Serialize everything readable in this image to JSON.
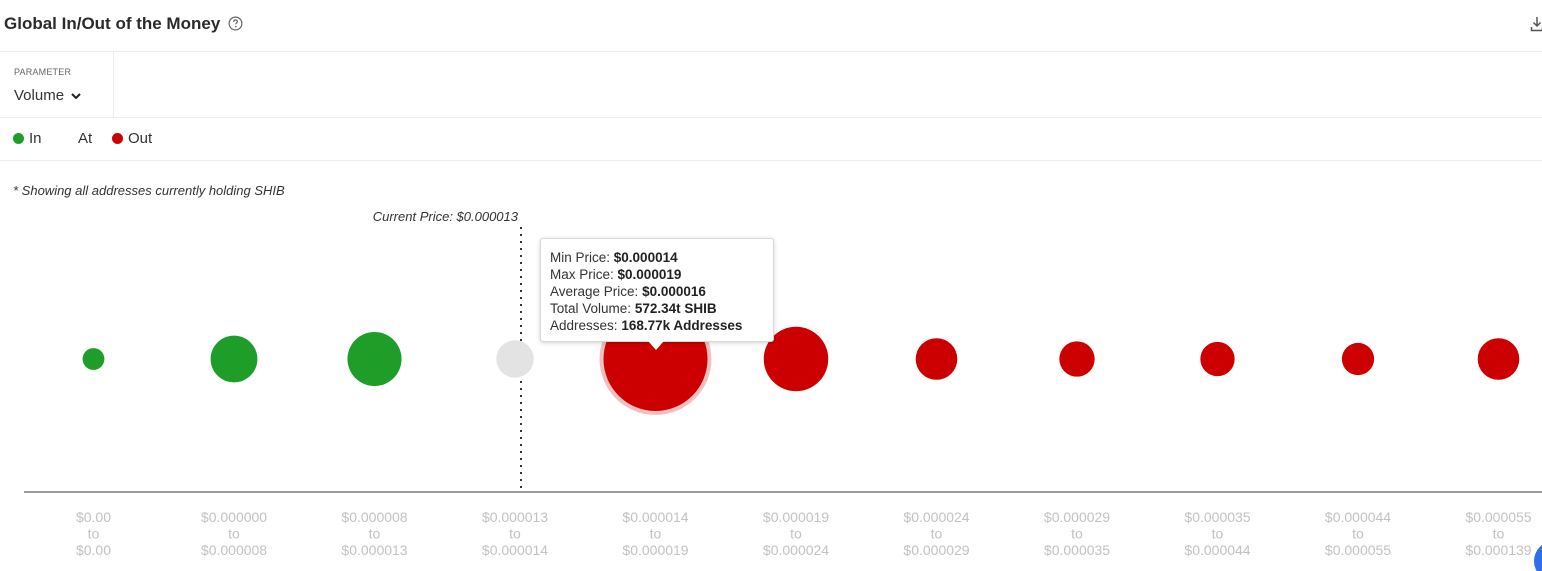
{
  "header": {
    "title": "Global In/Out of the Money",
    "help_icon": "question-circle-icon",
    "download_icon": "download-icon"
  },
  "parameter": {
    "label": "PARAMETER",
    "selected": "Volume"
  },
  "legend": {
    "in": {
      "label": "In",
      "color": "#1e9e29"
    },
    "at": {
      "label": "At",
      "color": "#e3e3e3"
    },
    "out": {
      "label": "Out",
      "color": "#cc0000"
    }
  },
  "note": "* Showing all addresses currently holding SHIB",
  "current_price_label": "Current Price: $0.000013",
  "tooltip": {
    "min_price_label": "Min Price:",
    "min_price_value": "$0.000014",
    "max_price_label": "Max Price:",
    "max_price_value": "$0.000019",
    "avg_price_label": "Average Price:",
    "avg_price_value": "$0.000016",
    "volume_label": "Total Volume:",
    "volume_value": "572.34t SHIB",
    "addresses_label": "Addresses:",
    "addresses_value": "168.77k Addresses"
  },
  "chart_data": {
    "type": "scatter",
    "title": "Global In/Out of the Money",
    "parameter": "Volume",
    "current_price": "$0.000013",
    "categories": [
      {
        "from": "$0.00",
        "to": "$0.00",
        "status": "in",
        "relative_size": 0.21
      },
      {
        "from": "$0.000000",
        "to": "$0.000008",
        "status": "in",
        "relative_size": 0.45
      },
      {
        "from": "$0.000008",
        "to": "$0.000013",
        "status": "in",
        "relative_size": 0.52
      },
      {
        "from": "$0.000013",
        "to": "$0.000014",
        "status": "at",
        "relative_size": 0.36
      },
      {
        "from": "$0.000014",
        "to": "$0.000019",
        "status": "out",
        "relative_size": 1.0,
        "highlighted": true
      },
      {
        "from": "$0.000019",
        "to": "$0.000024",
        "status": "out",
        "relative_size": 0.62
      },
      {
        "from": "$0.000024",
        "to": "$0.000029",
        "status": "out",
        "relative_size": 0.4
      },
      {
        "from": "$0.000029",
        "to": "$0.000035",
        "status": "out",
        "relative_size": 0.34
      },
      {
        "from": "$0.000035",
        "to": "$0.000044",
        "status": "out",
        "relative_size": 0.33
      },
      {
        "from": "$0.000044",
        "to": "$0.000055",
        "status": "out",
        "relative_size": 0.31
      },
      {
        "from": "$0.000055",
        "to": "$0.000139",
        "status": "out",
        "relative_size": 0.4
      }
    ],
    "tick_connector": "to",
    "legend_placement": "top-left",
    "grid": false
  }
}
